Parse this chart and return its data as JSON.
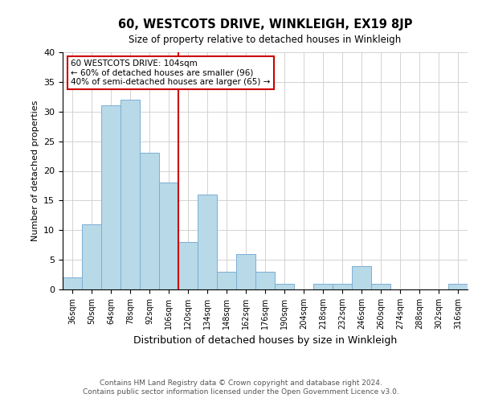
{
  "title": "60, WESTCOTS DRIVE, WINKLEIGH, EX19 8JP",
  "subtitle": "Size of property relative to detached houses in Winkleigh",
  "xlabel": "Distribution of detached houses by size in Winkleigh",
  "ylabel": "Number of detached properties",
  "bar_color": "#b8d9e8",
  "bar_edge_color": "#7bafd4",
  "bin_labels": [
    "36sqm",
    "50sqm",
    "64sqm",
    "78sqm",
    "92sqm",
    "106sqm",
    "120sqm",
    "134sqm",
    "148sqm",
    "162sqm",
    "176sqm",
    "190sqm",
    "204sqm",
    "218sqm",
    "232sqm",
    "246sqm",
    "260sqm",
    "274sqm",
    "288sqm",
    "302sqm",
    "316sqm"
  ],
  "bar_heights": [
    2,
    11,
    31,
    32,
    23,
    18,
    8,
    16,
    3,
    6,
    3,
    1,
    0,
    1,
    1,
    4,
    1,
    0,
    0,
    0,
    1
  ],
  "vline_x_bin": 5,
  "vline_color": "#cc0000",
  "ylim": [
    0,
    40
  ],
  "yticks": [
    0,
    5,
    10,
    15,
    20,
    25,
    30,
    35,
    40
  ],
  "annotation_title": "60 WESTCOTS DRIVE: 104sqm",
  "annotation_line1": "← 60% of detached houses are smaller (96)",
  "annotation_line2": "40% of semi-detached houses are larger (65) →",
  "annotation_box_color": "#ffffff",
  "annotation_box_edge": "#cc0000",
  "footer1": "Contains HM Land Registry data © Crown copyright and database right 2024.",
  "footer2": "Contains public sector information licensed under the Open Government Licence v3.0.",
  "background_color": "#ffffff",
  "grid_color": "#cccccc"
}
